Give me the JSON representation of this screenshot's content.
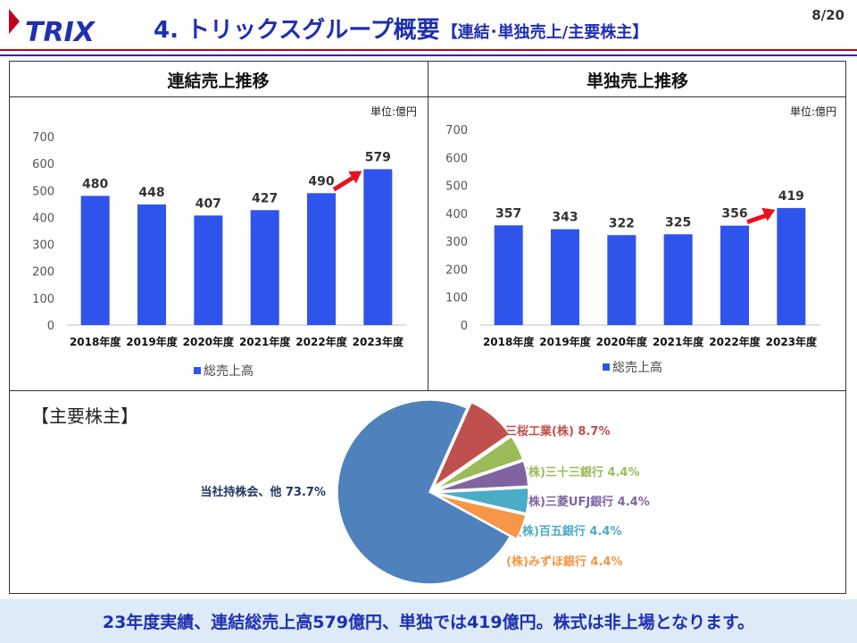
{
  "header": {
    "logo_text": "TRIX",
    "title_main": "4. トリックスグループ概要",
    "title_sub": "【連結･単独売上/主要株主】",
    "page": "8/20"
  },
  "colors": {
    "brand_blue": "#1f2fb0",
    "brand_red": "#c0001d",
    "bar": "#2f54eb",
    "arrow": "#e8121e"
  },
  "chart_data": [
    {
      "type": "bar",
      "title": "連結売上推移",
      "unit_note": "単位:億円",
      "categories": [
        "2018年度",
        "2019年度",
        "2020年度",
        "2021年度",
        "2022年度",
        "2023年度"
      ],
      "series": [
        {
          "name": "総売上高",
          "values": [
            480,
            448,
            407,
            427,
            490,
            579
          ]
        }
      ],
      "ylim": [
        0,
        700
      ],
      "yticks": [
        0,
        100,
        200,
        300,
        400,
        500,
        600,
        700
      ],
      "grid": false,
      "legend": "bottom",
      "annotation": "red arrow from 2022年度 to 2023年度"
    },
    {
      "type": "bar",
      "title": "単独売上推移",
      "unit_note": "単位:億円",
      "categories": [
        "2018年度",
        "2019年度",
        "2020年度",
        "2021年度",
        "2022年度",
        "2023年度"
      ],
      "series": [
        {
          "name": "総売上高",
          "values": [
            357,
            343,
            322,
            325,
            356,
            419
          ]
        }
      ],
      "ylim": [
        0,
        700
      ],
      "yticks": [
        0,
        100,
        200,
        300,
        400,
        500,
        600,
        700
      ],
      "grid": false,
      "legend": "bottom",
      "annotation": "red arrow from 2022年度 to 2023年度"
    },
    {
      "type": "pie",
      "title": "【主要株主】",
      "slices": [
        {
          "label": "三桜工業(株) 8.7%",
          "value": 8.7,
          "color": "#c0504d"
        },
        {
          "label": "(株)三十三銀行 4.4%",
          "value": 4.4,
          "color": "#9bbb59"
        },
        {
          "label": "(株)三菱UFJ銀行 4.4%",
          "value": 4.4,
          "color": "#8064a2"
        },
        {
          "label": "(株)百五銀行 4.4%",
          "value": 4.4,
          "color": "#4bacc6"
        },
        {
          "label": "(株)みずほ銀行 4.4%",
          "value": 4.4,
          "color": "#f79646"
        },
        {
          "label": "当社持株会、他 73.7%",
          "value": 73.7,
          "color": "#4f81bd"
        }
      ]
    }
  ],
  "footer": {
    "summary": "23年度実績、連結総売上高579億円、単独では419億円。株式は非上場となります。"
  }
}
